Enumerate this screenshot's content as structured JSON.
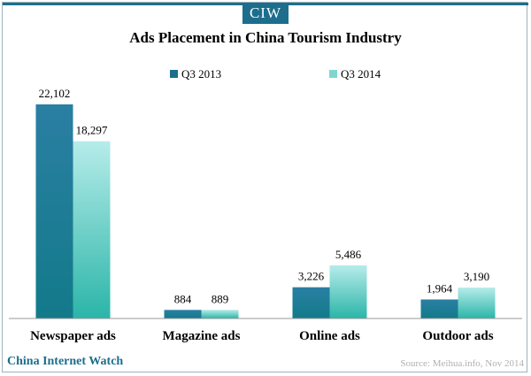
{
  "brand": {
    "logo_text": "CIW",
    "footer_left": "China Internet Watch"
  },
  "source": "Source: Meihua.info, Nov 2014",
  "colors": {
    "accent": "#1c6e8c",
    "series1_top": "#2a7fa3",
    "series1_bottom": "#137a8a",
    "series2_top": "#b6ecea",
    "series2_bottom": "#2bb5a8"
  },
  "chart_data": {
    "type": "bar",
    "title": "Ads Placement in China Tourism Industry",
    "categories": [
      "Newspaper ads",
      "Magazine ads",
      "Online ads",
      "Outdoor ads"
    ],
    "series": [
      {
        "name": "Q3 2013",
        "values": [
          22102,
          884,
          3226,
          1964
        ],
        "labels": [
          "22,102",
          "884",
          "3,226",
          "1,964"
        ]
      },
      {
        "name": "Q3 2014",
        "values": [
          18297,
          889,
          5486,
          3190
        ],
        "labels": [
          "18,297",
          "889",
          "5,486",
          "3,190"
        ]
      }
    ],
    "xlabel": "",
    "ylabel": "",
    "ylim": [
      0,
      22102
    ],
    "grid": false,
    "legend": "top-center"
  }
}
